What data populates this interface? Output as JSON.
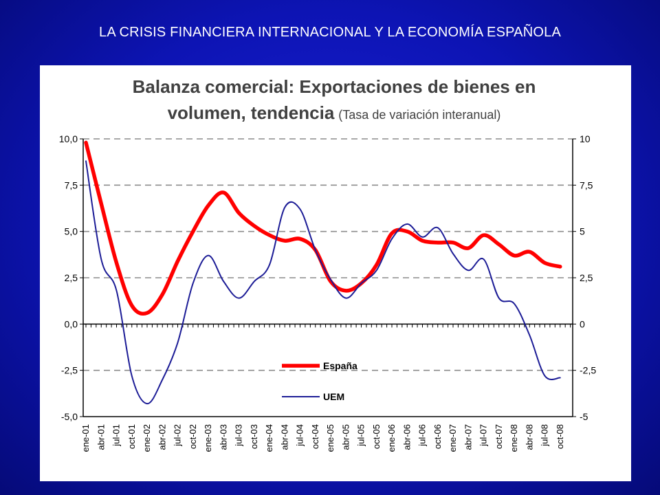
{
  "slide": {
    "title": "LA CRISIS FINANCIERA INTERNACIONAL  Y LA ECONOMÍA ESPAÑOLA"
  },
  "colors": {
    "background": "#0d14b4",
    "espana": "#ff0000",
    "uem": "#1c1c96"
  },
  "chart_data": {
    "type": "line",
    "title_line1": "Balanza comercial: Exportaciones de bienes en",
    "title_line2": "volumen, tendencia",
    "subtitle": "(Tasa de variación interanual)",
    "xlabel": "",
    "ylabel": "",
    "ylim": [
      -5,
      10
    ],
    "grid": true,
    "legend_position": "lower-right",
    "y_left_ticks": [
      "10,0",
      "7,5",
      "5,0",
      "2,5",
      "0,0",
      "-2,5",
      "-5,0"
    ],
    "y_right_ticks": [
      "10",
      "7,5",
      "5",
      "2,5",
      "0",
      "-2,5",
      "-5"
    ],
    "x": [
      "ene-01",
      "abr-01",
      "jul-01",
      "oct-01",
      "ene-02",
      "abr-02",
      "jul-02",
      "oct-02",
      "ene-03",
      "abr-03",
      "jul-03",
      "oct-03",
      "ene-04",
      "abr-04",
      "jul-04",
      "oct-04",
      "ene-05",
      "abr-05",
      "jul-05",
      "oct-05",
      "ene-06",
      "abr-06",
      "jul-06",
      "oct-06",
      "ene-07",
      "abr-07",
      "jul-07",
      "oct-07",
      "ene-08",
      "abr-08",
      "jul-08",
      "oct-08"
    ],
    "series": [
      {
        "name": "España",
        "values": [
          9.8,
          6.5,
          3.3,
          1.0,
          0.6,
          1.6,
          3.4,
          5.0,
          6.4,
          7.1,
          6.0,
          5.3,
          4.8,
          4.5,
          4.6,
          4.0,
          2.3,
          1.8,
          2.2,
          3.2,
          4.9,
          5.0,
          4.5,
          4.4,
          4.4,
          4.1,
          4.8,
          4.3,
          3.7,
          3.9,
          3.3,
          3.1
        ]
      },
      {
        "name": "UEM",
        "values": [
          8.8,
          3.5,
          1.8,
          -2.8,
          -4.3,
          -3.0,
          -1.0,
          2.2,
          3.7,
          2.3,
          1.4,
          2.3,
          3.2,
          6.3,
          6.2,
          4.0,
          2.4,
          1.4,
          2.2,
          2.9,
          4.6,
          5.4,
          4.7,
          5.2,
          3.8,
          2.9,
          3.5,
          1.4,
          1.1,
          -0.6,
          -2.8,
          -2.9
        ]
      }
    ]
  }
}
